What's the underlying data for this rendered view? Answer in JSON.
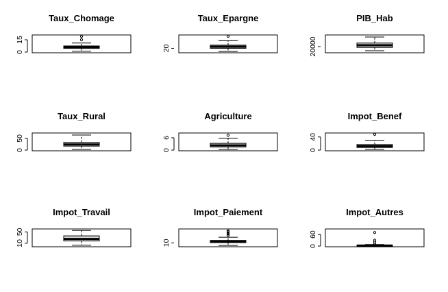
{
  "chart_data": [
    {
      "type": "boxplot",
      "title": "Taux_Chomage",
      "orientation": "horizontal",
      "ylim": [
        0,
        20
      ],
      "ticks": [
        0,
        15
      ],
      "tick_labels": [
        "0",
        "15"
      ],
      "box": {
        "whisker_low": 1,
        "q1": 4.5,
        "median": 6,
        "q3": 7.5,
        "whisker_high": 11
      },
      "outliers": [
        15,
        19
      ]
    },
    {
      "type": "boxplot",
      "title": "Taux_Epargne",
      "orientation": "horizontal",
      "ylim": [
        14,
        40
      ],
      "ticks": [
        20
      ],
      "tick_labels": [
        "20"
      ],
      "box": {
        "whisker_low": 15,
        "q1": 20,
        "median": 22.5,
        "q3": 25,
        "whisker_high": 32
      },
      "outliers": [
        39
      ]
    },
    {
      "type": "boxplot",
      "title": "PIB_Hab",
      "orientation": "horizontal",
      "ylim": [
        0,
        60000
      ],
      "ticks": [
        20000
      ],
      "tick_labels": [
        "20000"
      ],
      "box": {
        "whisker_low": 5000,
        "q1": 17000,
        "median": 25000,
        "q3": 33000,
        "whisker_high": 55000
      },
      "outliers": []
    },
    {
      "type": "boxplot",
      "title": "Taux_Rural",
      "orientation": "horizontal",
      "ylim": [
        0,
        70
      ],
      "ticks": [
        0,
        50
      ],
      "tick_labels": [
        "0",
        "50"
      ],
      "box": {
        "whisker_low": 3,
        "q1": 17,
        "median": 24,
        "q3": 33,
        "whisker_high": 64
      },
      "outliers": []
    },
    {
      "type": "boxplot",
      "title": "Agriculture",
      "orientation": "horizontal",
      "ylim": [
        0,
        8
      ],
      "ticks": [
        0,
        6
      ],
      "tick_labels": [
        "0",
        "6"
      ],
      "box": {
        "whisker_low": 0.3,
        "q1": 1.5,
        "median": 2.3,
        "q3": 3.3,
        "whisker_high": 5.8
      },
      "outliers": [
        7.2
      ]
    },
    {
      "type": "boxplot",
      "title": "Impot_Benef",
      "orientation": "horizontal",
      "ylim": [
        0,
        50
      ],
      "ticks": [
        0,
        40
      ],
      "tick_labels": [
        "0",
        "40"
      ],
      "box": {
        "whisker_low": 2,
        "q1": 8,
        "median": 12,
        "q3": 17,
        "whisker_high": 30
      },
      "outliers": [
        48
      ]
    },
    {
      "type": "boxplot",
      "title": "Impot_Travail",
      "orientation": "horizontal",
      "ylim": [
        0,
        58
      ],
      "ticks": [
        10,
        50
      ],
      "tick_labels": [
        "10",
        "50"
      ],
      "box": {
        "whisker_low": 3,
        "q1": 18,
        "median": 25,
        "q3": 36,
        "whisker_high": 55
      },
      "outliers": []
    },
    {
      "type": "boxplot",
      "title": "Impot_Paiement",
      "orientation": "horizontal",
      "ylim": [
        5,
        31
      ],
      "ticks": [
        10
      ],
      "tick_labels": [
        "10"
      ],
      "box": {
        "whisker_low": 6,
        "q1": 10.5,
        "median": 12,
        "q3": 14,
        "whisker_high": 19
      },
      "outliers": [
        22,
        24,
        26,
        28,
        29
      ]
    },
    {
      "type": "boxplot",
      "title": "Impot_Autres",
      "orientation": "horizontal",
      "ylim": [
        0,
        85
      ],
      "ticks": [
        0,
        60
      ],
      "tick_labels": [
        "0",
        "60"
      ],
      "box": {
        "whisker_low": 0,
        "q1": 1,
        "median": 2.5,
        "q3": 4,
        "whisker_high": 8
      },
      "outliers": [
        10,
        20,
        30,
        70
      ]
    }
  ]
}
